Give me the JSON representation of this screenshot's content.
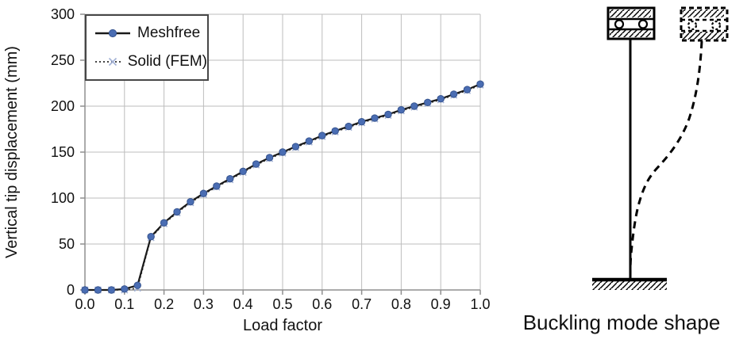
{
  "chart_data": {
    "type": "line",
    "title": "",
    "xlabel": "Load factor",
    "ylabel": "Vertical tip displacement (mm)",
    "xlim": [
      0.0,
      1.0
    ],
    "ylim": [
      0,
      300
    ],
    "grid": true,
    "legend_position": "top-left",
    "xticks": [
      0.0,
      0.1,
      0.2,
      0.3,
      0.4,
      0.5,
      0.6,
      0.7,
      0.8,
      0.9,
      1.0
    ],
    "xtick_labels": [
      "0.0",
      "0.1",
      "0.2",
      "0.3",
      "0.4",
      "0.5",
      "0.6",
      "0.7",
      "0.8",
      "0.9",
      "1.0"
    ],
    "yticks": [
      0,
      50,
      100,
      150,
      200,
      250,
      300
    ],
    "ytick_labels": [
      "0",
      "50",
      "100",
      "150",
      "200",
      "250",
      "300"
    ],
    "x": [
      0.0,
      0.033,
      0.067,
      0.1,
      0.133,
      0.167,
      0.2,
      0.233,
      0.267,
      0.3,
      0.333,
      0.367,
      0.4,
      0.433,
      0.467,
      0.5,
      0.533,
      0.567,
      0.6,
      0.633,
      0.667,
      0.7,
      0.733,
      0.767,
      0.8,
      0.833,
      0.867,
      0.9,
      0.933,
      0.967,
      1.0
    ],
    "series": [
      {
        "name": "Meshfree",
        "marker": "circle",
        "line_style": "solid",
        "values": [
          0,
          0,
          0,
          1,
          5,
          58,
          73,
          85,
          96,
          105,
          113,
          121,
          129,
          137,
          144,
          150,
          156,
          162,
          168,
          173,
          178,
          183,
          187,
          191,
          196,
          200,
          204,
          208,
          213,
          218,
          224
        ]
      },
      {
        "name": "Solid (FEM)",
        "marker": "x",
        "line_style": "dotted",
        "values": [
          0,
          0,
          0,
          0,
          2,
          57,
          72,
          84,
          95,
          104,
          112,
          120,
          128,
          136,
          143,
          149,
          155,
          161,
          167,
          172,
          177,
          182,
          186,
          190,
          195,
          199,
          203,
          207,
          212,
          217,
          223
        ]
      }
    ],
    "colors": {
      "meshfree_line": "#1a1a1a",
      "meshfree_marker": "#4a6db3",
      "meshfree_marker_edge": "#36548f",
      "fem_line": "#2b2b2b",
      "fem_marker": "#a3b2d6",
      "grid": "#bdbdbd",
      "axis": "#8f8f8f"
    }
  },
  "diagram": {
    "caption": "Buckling mode shape"
  }
}
